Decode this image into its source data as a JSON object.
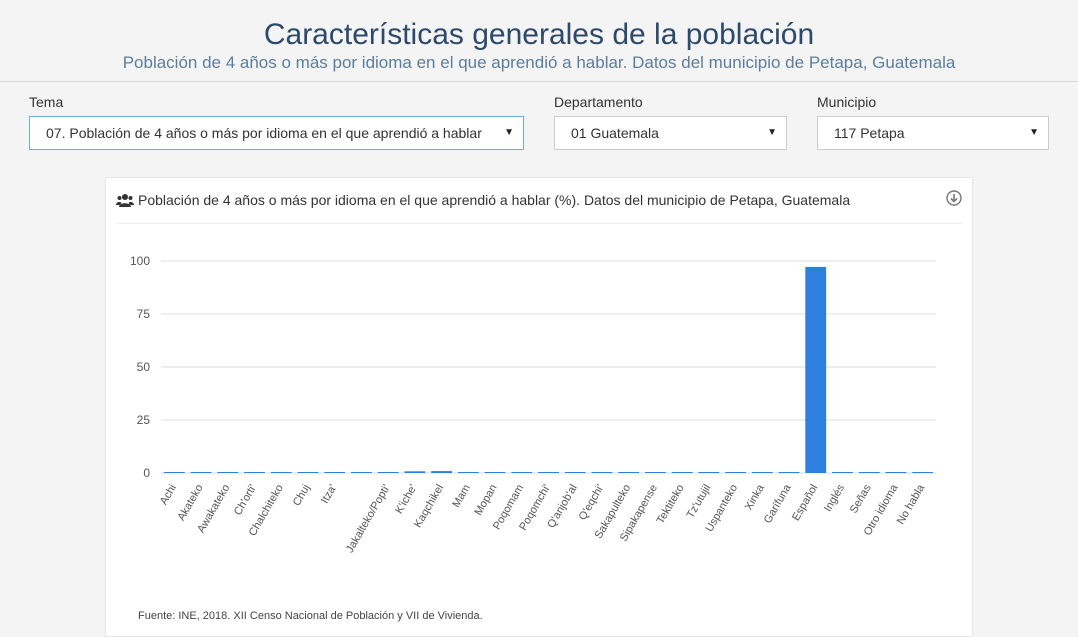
{
  "header": {
    "title": "Características generales de la población",
    "subtitle": "Población de 4 años o más por idioma en el que aprendió a hablar. Datos del municipio de Petapa, Guatemala"
  },
  "filters": {
    "tema": {
      "label": "Tema",
      "value": "07. Población de 4 años o más por idioma en el que aprendió a hablar"
    },
    "departamento": {
      "label": "Departamento",
      "value": "01 Guatemala"
    },
    "municipio": {
      "label": "Municipio",
      "value": "117 Petapa"
    }
  },
  "panel": {
    "title": "Población de 4 años o más por idioma en el que aprendió a hablar (%). Datos del municipio de Petapa, Guatemala",
    "source": "Fuente: INE, 2018. XII Censo Nacional de Población y VII de Vivienda."
  },
  "colors": {
    "bar": "#2d7fe0",
    "title": "#2d4a6b",
    "grid": "#dddddd"
  },
  "icons": {
    "panel": "users-icon",
    "download": "download-icon",
    "dropdown": "caret-down-icon"
  },
  "chart_data": {
    "type": "bar",
    "title": "",
    "xlabel": "",
    "ylabel": "",
    "ylim": [
      0,
      100
    ],
    "yticks": [
      0,
      25,
      50,
      75,
      100
    ],
    "grid": true,
    "categories": [
      "Achi",
      "Akateko",
      "Awakateko",
      "Ch'orti'",
      "Chalchiteko",
      "Chuj",
      "Itza'",
      "",
      "Jakalteko/Popti'",
      "K'iche'",
      "Kaqchikel",
      "Mam",
      "Mopan",
      "Poqomam",
      "Poqomchi'",
      "Q'anjob'al",
      "Q'eqchi'",
      "Sakapulteko",
      "Sipakapense",
      "Tektiteko",
      "Tz'utujil",
      "Uspanteko",
      "Xinka",
      "Garífuna",
      "Español",
      "Inglés",
      "Señas",
      "Otro idioma",
      "No habla"
    ],
    "values": [
      0.05,
      0.05,
      0.05,
      0.05,
      0.05,
      0.05,
      0.05,
      0.05,
      0.05,
      0.8,
      0.9,
      0.1,
      0.05,
      0.1,
      0.05,
      0.1,
      0.1,
      0.05,
      0.05,
      0.05,
      0.05,
      0.05,
      0.05,
      0.05,
      97.2,
      0.1,
      0.05,
      0.1,
      0.1
    ]
  }
}
